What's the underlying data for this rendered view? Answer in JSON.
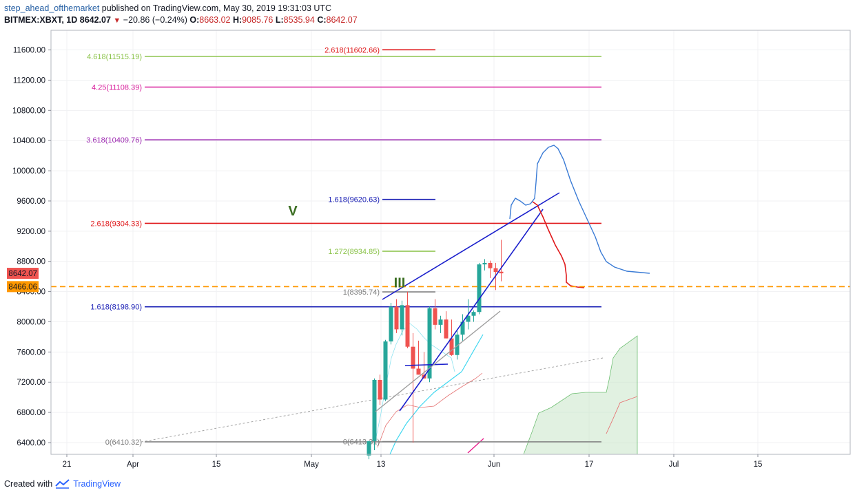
{
  "header": {
    "author": "step_ahead_ofthemarket",
    "published": "published on TradingView.com, May 30, 2019 19:31:03 UTC",
    "symbol": "BITMEX:XBXT, 1D",
    "last": "8642.07",
    "change": "−20.86 (−0.24%)",
    "o_label": "O:",
    "o_value": "8663.02",
    "h_label": "H:",
    "h_value": "9085.76",
    "l_label": "L:",
    "l_value": "8535.94",
    "c_label": "C:",
    "c_value": "8642.07"
  },
  "footer": {
    "created_with": "Created with",
    "brand": "TradingView"
  },
  "colors": {
    "bull": "#26a69a",
    "bear": "#ef5350",
    "fib_red": "#e0191b",
    "fib_blue": "#1a1fb5",
    "fib_green": "#8bc34a",
    "fib_magenta": "#d81b9a",
    "fib_purple": "#9c27b0",
    "fib_gray": "#808080",
    "wedge": "#1a1fcc",
    "projection": "#3a7bd5",
    "dashed": "#ff9800"
  },
  "chart_data": {
    "type": "candlestick",
    "symbol": "BITMEX:XBXT",
    "timeframe": "1D",
    "y_ticks": [
      "11600.00",
      "11200.00",
      "10800.00",
      "10400.00",
      "10000.00",
      "9600.00",
      "9200.00",
      "8800.00",
      "8400.00",
      "8000.00",
      "7600.00",
      "7200.00",
      "6800.00",
      "6400.00"
    ],
    "x_ticks": [
      "21",
      "Apr",
      "15",
      "May",
      "13",
      "Jun",
      "17",
      "Jul",
      "15"
    ],
    "price_tags": [
      {
        "text": "8642.07",
        "price": 8642.07,
        "color": "#ef5350"
      },
      {
        "text": "8466.06",
        "price": 8466.06,
        "color": "#ff9800"
      }
    ],
    "horizontal_levels": [
      {
        "label": "2.618(11602.66)",
        "price": 11602.66,
        "color": "#e0191b"
      },
      {
        "label": "4.618(11515.19)",
        "price": 11515.19,
        "color": "#8bc34a"
      },
      {
        "label": "4.25(11108.39)",
        "price": 11108.39,
        "color": "#d81b9a"
      },
      {
        "label": "3.618(10409.76)",
        "price": 10409.76,
        "color": "#9c27b0"
      },
      {
        "label": "1.618(9620.63)",
        "price": 9620.63,
        "color": "#1a1fb5"
      },
      {
        "label": "2.618(9304.33)",
        "price": 9304.33,
        "color": "#e0191b"
      },
      {
        "label": "1.272(8934.85)",
        "price": 8934.85,
        "color": "#8bc34a"
      },
      {
        "label": "1(8395.74)",
        "price": 8395.74,
        "color": "#808080"
      },
      {
        "label": "1.618(8198.90)",
        "price": 8198.9,
        "color": "#1a1fb5"
      },
      {
        "label": "0(6410.32)",
        "price": 6410.32,
        "color": "#808080"
      },
      {
        "label": "0(6413.31)",
        "price": 6413.31,
        "color": "#808080"
      }
    ],
    "wave_labels": [
      {
        "text": "V",
        "price": 9480,
        "color": "#3b6e22"
      },
      {
        "text": "III",
        "price": 8530,
        "color": "#3b6e22"
      }
    ],
    "candles": [
      [
        6230,
        6420,
        6180,
        6420
      ],
      [
        6420,
        7250,
        6300,
        7230
      ],
      [
        7230,
        7300,
        6900,
        6970
      ],
      [
        6970,
        7760,
        6950,
        7740
      ],
      [
        7740,
        8250,
        7700,
        8200
      ],
      [
        8200,
        8300,
        7850,
        7900
      ],
      [
        7900,
        8280,
        7820,
        8220
      ],
      [
        8220,
        8400,
        7650,
        7670
      ],
      [
        7670,
        7850,
        6400,
        7380
      ],
      [
        7380,
        7750,
        7300,
        7300
      ],
      [
        7300,
        7600,
        7250,
        7250
      ],
      [
        7250,
        8200,
        7200,
        8180
      ],
      [
        8180,
        8300,
        7900,
        7960
      ],
      [
        7960,
        8080,
        7850,
        8030
      ],
      [
        8030,
        8140,
        7780,
        7780
      ],
      [
        7780,
        8030,
        7550,
        7560
      ],
      [
        7560,
        7880,
        7500,
        7830
      ],
      [
        7830,
        8100,
        7750,
        8000
      ],
      [
        8000,
        8300,
        7900,
        8080
      ],
      [
        8080,
        8150,
        8000,
        8130
      ],
      [
        8130,
        8780,
        8100,
        8760
      ],
      [
        8760,
        8830,
        8680,
        8780
      ],
      [
        8780,
        8810,
        8580,
        8710
      ],
      [
        8710,
        8780,
        8420,
        8660
      ],
      [
        8663.02,
        9085.76,
        8535.94,
        8642.07
      ]
    ]
  }
}
